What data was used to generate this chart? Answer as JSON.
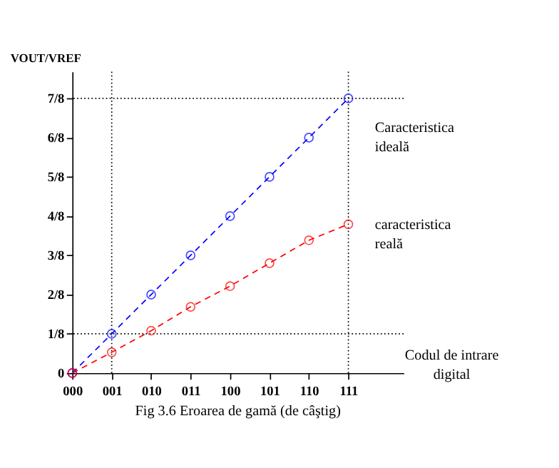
{
  "chart_data": {
    "type": "line",
    "title": "Fig 3.6 Eroarea de gamă (de câştig)",
    "xlabel": "Codul de intrare digital",
    "ylabel": "VOUT/VREF",
    "categories": [
      "000",
      "001",
      "010",
      "011",
      "100",
      "101",
      "110",
      "111"
    ],
    "series": [
      {
        "name": "Caracteristica ideală",
        "color": "#0000ff",
        "values": [
          0,
          0.125,
          0.25,
          0.375,
          0.5,
          0.625,
          0.75,
          0.875
        ]
      },
      {
        "name": "caracteristica reală",
        "color": "#ff0000",
        "values": [
          0,
          0.066,
          0.135,
          0.211,
          0.277,
          0.35,
          0.423,
          0.474
        ]
      }
    ],
    "ylim": [
      0,
      0.96
    ],
    "yticks": [
      {
        "value": 0,
        "label": "0"
      },
      {
        "value": 0.125,
        "label": "1/8"
      },
      {
        "value": 0.25,
        "label": "2/8"
      },
      {
        "value": 0.375,
        "label": "3/8"
      },
      {
        "value": 0.5,
        "label": "4/8"
      },
      {
        "value": 0.625,
        "label": "5/8"
      },
      {
        "value": 0.75,
        "label": "6/8"
      },
      {
        "value": 0.875,
        "label": "7/8"
      }
    ],
    "ref_lines": [
      {
        "axis": "y",
        "value": 0.125,
        "color": "#000000",
        "line_style": "dotted"
      },
      {
        "axis": "y",
        "value": 0.875,
        "color": "#000000",
        "line_style": "dotted"
      },
      {
        "axis": "x",
        "value": "001",
        "color": "#000000",
        "line_style": "dotted"
      },
      {
        "axis": "x",
        "value": "111",
        "color": "#000000",
        "line_style": "dotted"
      }
    ],
    "marker": "circle",
    "line_style": "dashed",
    "grid": false
  }
}
